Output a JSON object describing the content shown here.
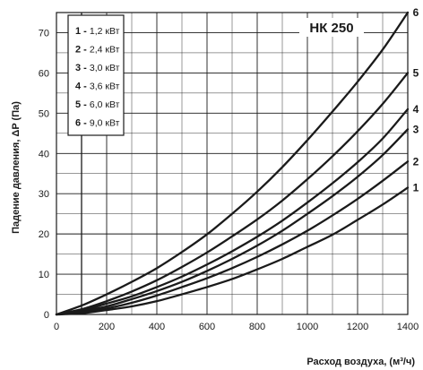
{
  "chart_data": {
    "type": "line",
    "title": "НК 250",
    "xlabel": "Расход воздуха, (м³/ч)",
    "ylabel": "Падение давления, ΔP (Па)",
    "xlim": [
      0,
      1400
    ],
    "ylim": [
      0,
      75
    ],
    "xticks": [
      0,
      200,
      400,
      600,
      800,
      1000,
      1200,
      1400
    ],
    "yticks": [
      0,
      10,
      20,
      30,
      40,
      50,
      60,
      70
    ],
    "x_minor_grid": 100,
    "y_minor_grid": 5,
    "grid": true,
    "legend_position": "top-left",
    "legend": [
      {
        "num": "1",
        "sep": " - ",
        "text": "1,2 кВт"
      },
      {
        "num": "2",
        "sep": " - ",
        "text": "2,4 кВт"
      },
      {
        "num": "3",
        "sep": " - ",
        "text": "3,0 кВт"
      },
      {
        "num": "4",
        "sep": " - ",
        "text": "3,6 кВт"
      },
      {
        "num": "5",
        "sep": " - ",
        "text": "6,0 кВт"
      },
      {
        "num": "6",
        "sep": " - ",
        "text": "9,0 кВт"
      }
    ],
    "x": [
      0,
      100,
      200,
      300,
      400,
      500,
      600,
      700,
      800,
      900,
      1000,
      1100,
      1200,
      1300,
      1400
    ],
    "series": [
      {
        "name": "1",
        "values": [
          0,
          0.3,
          1.1,
          2.0,
          3.3,
          5.0,
          6.8,
          8.8,
          11.2,
          13.8,
          16.8,
          19.8,
          23.5,
          27.3,
          31.5
        ]
      },
      {
        "name": "2",
        "values": [
          0,
          0.5,
          1.5,
          2.9,
          4.7,
          6.8,
          9.0,
          11.5,
          14.3,
          17.4,
          20.8,
          24.6,
          28.7,
          33.2,
          38.0
        ]
      },
      {
        "name": "3",
        "values": [
          0,
          0.8,
          2.0,
          3.8,
          5.8,
          8.1,
          10.8,
          13.8,
          17.1,
          20.8,
          25.0,
          29.4,
          34.2,
          39.6,
          46.0
        ]
      },
      {
        "name": "4",
        "values": [
          0,
          1.0,
          2.7,
          4.5,
          6.8,
          9.4,
          12.4,
          15.7,
          19.3,
          23.3,
          27.8,
          32.6,
          37.8,
          43.7,
          51.0
        ]
      },
      {
        "name": "5",
        "values": [
          0,
          1.3,
          3.3,
          5.7,
          8.5,
          11.8,
          15.4,
          19.4,
          23.6,
          28.3,
          33.6,
          39.3,
          45.5,
          52.3,
          60.0
        ]
      },
      {
        "name": "6",
        "values": [
          0,
          2.2,
          5.0,
          8.1,
          11.5,
          15.5,
          19.9,
          25.0,
          30.5,
          36.6,
          43.3,
          50.4,
          57.8,
          65.8,
          75.0
        ]
      }
    ]
  },
  "colors": {
    "grid": "#1a1a1a",
    "curve": "#1a1a1a",
    "background": "#ffffff"
  }
}
